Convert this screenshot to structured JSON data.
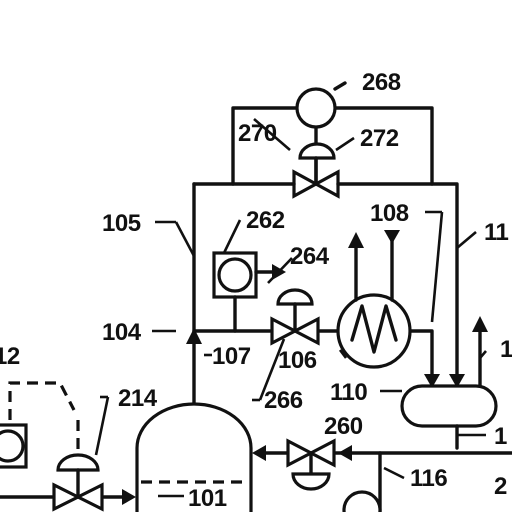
{
  "colors": {
    "line": "#111111",
    "background": "#ffffff"
  },
  "labels": {
    "ref_268": "268",
    "ref_270": "270",
    "ref_272": "272",
    "ref_105": "105",
    "ref_262": "262",
    "ref_108": "108",
    "ref_11x": "11",
    "ref_264": "264",
    "ref_104": "104",
    "ref_107": "107",
    "ref_106": "106",
    "ref_1xx_right": "1",
    "ref_12": "12",
    "ref_110": "110",
    "ref_214": "214",
    "ref_266": "266",
    "ref_260": "260",
    "ref_1xx_lower": "1",
    "ref_116": "116",
    "ref_2xx": "2",
    "ref_101": "101"
  },
  "components": {
    "controllers": [
      "controller-268",
      "controller-262",
      "controller-left-partial",
      "controller-bottom-partial"
    ],
    "valves": [
      "valve-270-272",
      "valve-264-266",
      "valve-214",
      "valve-260"
    ],
    "heat_exchanger": "heat-exchanger-106",
    "vessel": "separator-vessel-110",
    "tank": "tank-101"
  }
}
